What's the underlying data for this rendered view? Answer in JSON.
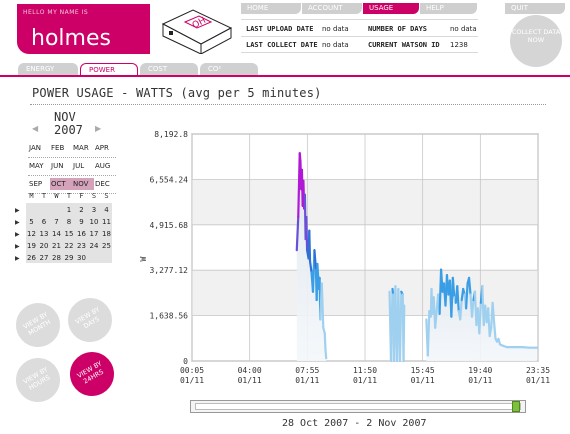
{
  "logo": {
    "tagline": "HELLO MY NAME IS",
    "name": "holmes",
    "device_sticker": "OH"
  },
  "nav": [
    {
      "label": "HOME"
    },
    {
      "label": "ACCOUNT"
    },
    {
      "label": "USAGE"
    },
    {
      "label": "HELP"
    },
    {
      "label": "QUIT"
    }
  ],
  "info": {
    "last_upload_label": "LAST UPLOAD DATE",
    "last_upload_value": "no data",
    "number_of_days_label": "NUMBER OF DAYS",
    "number_of_days_value": "no data",
    "last_collect_label": "LAST COLLECT DATE",
    "last_collect_value": "no data",
    "watson_id_label": "CURRENT WATSON ID",
    "watson_id_value": "1238"
  },
  "collect": {
    "label": "COLLECT DATA NOW"
  },
  "subtabs": [
    {
      "label": "ENERGY"
    },
    {
      "label": "POWER"
    },
    {
      "label": "COST"
    },
    {
      "label": "CO²"
    }
  ],
  "page_title": "POWER USAGE - WATTS (avg per 5 minutes)",
  "calendar": {
    "month": "NOV",
    "year": "2007",
    "months": [
      "JAN",
      "FEB",
      "MAR",
      "APR",
      "MAY",
      "JUN",
      "JUL",
      "AUG",
      "SEP",
      "OCT",
      "NOV",
      "DEC"
    ],
    "highlighted_month": "OCT",
    "selected_month": "NOV",
    "dow": [
      "M",
      "T",
      "W",
      "T",
      "F",
      "S",
      "S"
    ],
    "weeks": [
      [
        "",
        "",
        "",
        "1",
        "2",
        "3",
        "4"
      ],
      [
        "5",
        "6",
        "7",
        "8",
        "9",
        "10",
        "11"
      ],
      [
        "12",
        "13",
        "14",
        "15",
        "16",
        "17",
        "18"
      ],
      [
        "19",
        "20",
        "21",
        "22",
        "23",
        "24",
        "25"
      ],
      [
        "26",
        "27",
        "28",
        "29",
        "30",
        "",
        ""
      ]
    ]
  },
  "view_buttons": [
    {
      "label": "VIEW BY MONTH"
    },
    {
      "label": "VIEW BY DAYS"
    },
    {
      "label": "VIEW BY HOURS"
    },
    {
      "label": "VIEW BY 24HRS"
    }
  ],
  "chart_data": {
    "type": "line",
    "ylabel": "W",
    "ylim": [
      0,
      8192.8
    ],
    "y_ticks": [
      "0",
      "1,638.56",
      "3,277.12",
      "4,915.68",
      "6,554.24",
      "8,192.8"
    ],
    "x_ticks": [
      {
        "time": "00:05",
        "date": "01/11"
      },
      {
        "time": "04:00",
        "date": "01/11"
      },
      {
        "time": "07:55",
        "date": "01/11"
      },
      {
        "time": "11:50",
        "date": "01/11"
      },
      {
        "time": "15:45",
        "date": "01/11"
      },
      {
        "time": "19:40",
        "date": "01/11"
      },
      {
        "time": "23:35",
        "date": "01/11"
      }
    ],
    "x_range_hours": [
      0.083,
      23.583
    ],
    "grid": true,
    "series": [
      {
        "x": [
          7.2,
          7.3,
          7.4,
          7.45,
          7.5,
          7.55,
          7.6,
          7.65,
          7.7,
          7.75,
          7.8,
          7.85,
          7.9,
          8.0,
          8.05,
          8.1,
          8.2,
          8.3,
          8.4,
          8.5,
          8.55,
          8.6,
          8.7,
          8.75,
          8.8,
          8.9,
          9.0,
          9.1,
          9.15,
          9.2
        ],
        "y": [
          4000,
          5200,
          7500,
          7200,
          6200,
          6900,
          5600,
          6500,
          5500,
          6000,
          4400,
          5200,
          4000,
          3700,
          4700,
          3600,
          3200,
          2500,
          4000,
          3300,
          2200,
          3500,
          2600,
          3000,
          1500,
          2800,
          1200,
          1000,
          400,
          100
        ]
      },
      {
        "x": [
          13.5,
          13.6,
          13.7,
          13.75,
          13.8,
          13.9,
          14.0,
          14.1,
          14.2,
          14.3,
          14.4,
          14.45,
          14.5
        ],
        "y": [
          2500,
          0,
          2600,
          2400,
          0,
          2700,
          0,
          2600,
          0,
          2500,
          2400,
          0,
          2000
        ]
      },
      {
        "x": [
          16.0,
          16.1,
          16.2,
          16.3,
          16.35,
          16.4,
          16.5,
          16.6,
          16.7,
          16.8,
          16.9,
          17.0,
          17.1,
          17.2,
          17.3,
          17.4,
          17.5,
          17.6,
          17.7,
          17.8,
          17.9,
          18.0,
          18.1,
          18.2,
          18.3,
          18.4,
          18.5,
          18.6,
          18.7,
          18.8,
          18.9,
          19.0,
          19.1,
          19.2,
          19.3,
          19.4,
          19.5,
          19.6,
          19.7,
          19.8,
          19.9,
          20.0,
          20.1,
          20.2,
          20.3,
          20.4,
          20.5,
          20.6,
          20.7,
          20.8,
          20.9,
          21.0,
          21.2,
          21.5,
          22.0,
          22.5,
          23.0,
          23.5
        ],
        "y": [
          1500,
          200,
          1800,
          1600,
          2600,
          1700,
          2300,
          1200,
          1800,
          2400,
          1700,
          3300,
          2500,
          2800,
          2000,
          3100,
          2400,
          2900,
          1600,
          3000,
          2300,
          2100,
          2700,
          1800,
          1500,
          2200,
          2600,
          2400,
          1900,
          2800,
          3000,
          2400,
          1600,
          2200,
          2500,
          1300,
          1900,
          1000,
          2100,
          2700,
          1300,
          2000,
          1400,
          1900,
          900,
          1200,
          2100,
          1400,
          800,
          700,
          800,
          600,
          550,
          500,
          500,
          500,
          480,
          480
        ]
      }
    ]
  },
  "date_range": "28 Oct 2007 - 2 Nov 2007"
}
